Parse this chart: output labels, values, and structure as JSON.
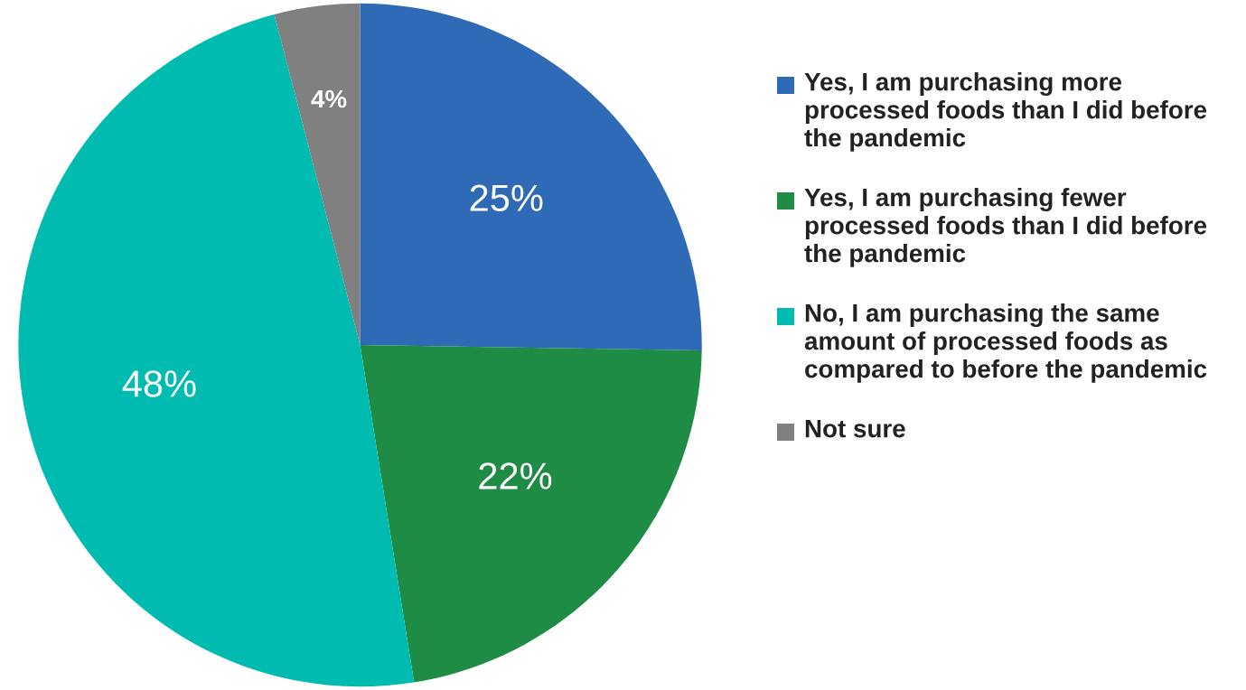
{
  "chart_data": {
    "type": "pie",
    "categories": [
      "Yes, I am purchasing more processed foods than I did before the pandemic",
      "Yes, I am purchasing fewer processed foods than I did before the pandemic",
      "No, I am purchasing the same amount of processed foods as compared to before the pandemic",
      "Not sure"
    ],
    "values": [
      25,
      22,
      48,
      4
    ],
    "colors": [
      "#2e6ab5",
      "#1e8c45",
      "#00bcb0",
      "#808080"
    ],
    "value_labels": [
      "25%",
      "22%",
      "48%",
      "4%"
    ],
    "legend": "right"
  }
}
